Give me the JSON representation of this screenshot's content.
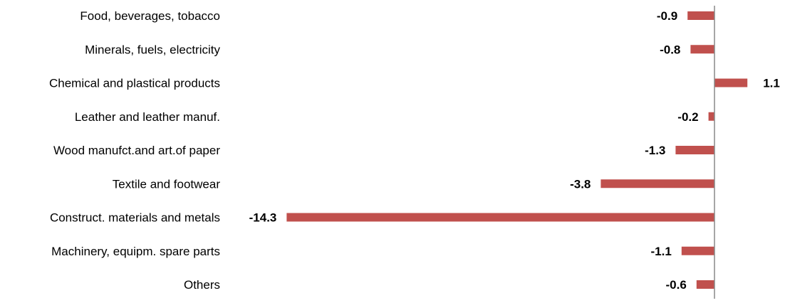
{
  "chart_data": {
    "type": "bar",
    "orientation": "horizontal",
    "categories": [
      "Food, beverages, tobacco",
      "Minerals, fuels, electricity",
      "Chemical and plastical products",
      "Leather and leather manuf.",
      "Wood manufct.and art.of paper",
      "Textile and footwear",
      "Construct. materials and metals",
      "Machinery, equipm. spare parts",
      "Others"
    ],
    "values": [
      -0.9,
      -0.8,
      1.1,
      -0.2,
      -1.3,
      -3.8,
      -14.3,
      -1.1,
      -0.6
    ],
    "value_labels": [
      "-0.9",
      "-0.8",
      "1.1",
      "-0.2",
      "-1.3",
      "-3.8",
      "-14.3",
      "-1.1",
      "-0.6"
    ],
    "title": "",
    "xlabel": "",
    "ylabel": "",
    "grid": false,
    "legend": "none",
    "bar_color": "#c0504d",
    "axis_color": "#888888"
  }
}
